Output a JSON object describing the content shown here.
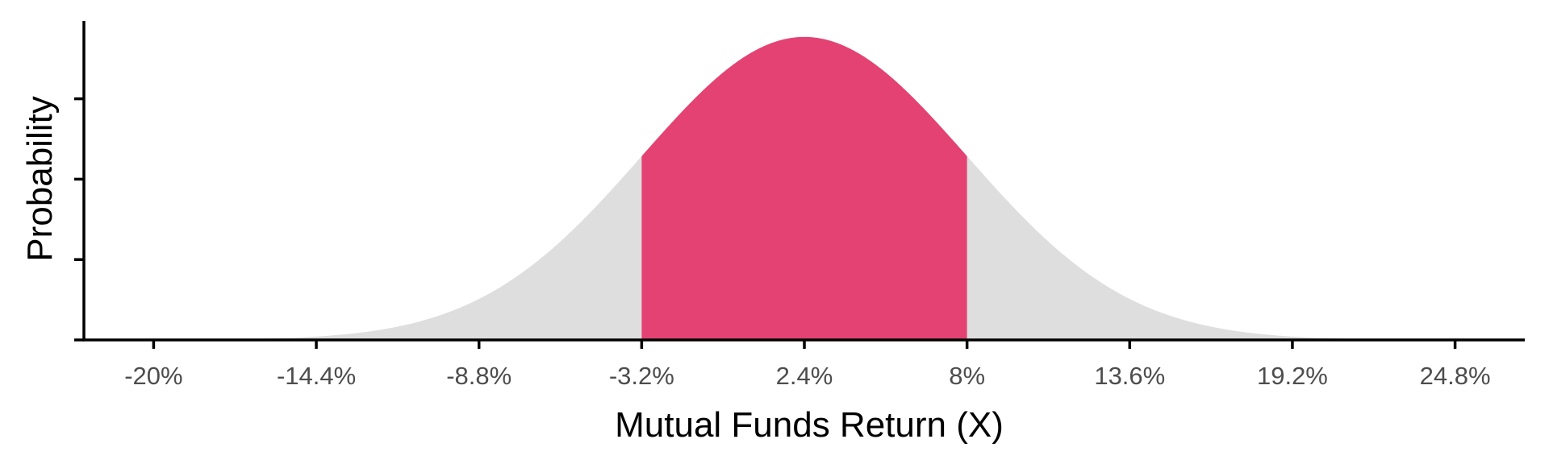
{
  "chart_data": {
    "type": "area",
    "distribution": "normal",
    "mean": 2.4,
    "sd": 5.6,
    "xlim": [
      -22.4,
      27.2
    ],
    "ylim": [
      0,
      0.075
    ],
    "x_ticks": [
      -20,
      -14.4,
      -8.8,
      -3.2,
      2.4,
      8,
      13.6,
      19.2,
      24.8
    ],
    "x_tick_labels": [
      "-20%",
      "-14.4%",
      "-8.8%",
      "-3.2%",
      "2.4%",
      "8%",
      "13.6%",
      "19.2%",
      "24.8%"
    ],
    "y_ticks": [
      0,
      0.0189,
      0.0378,
      0.0567
    ],
    "y_tick_labels_shown": false,
    "shaded_range": [
      -3.2,
      8
    ],
    "xlabel": "Mutual Funds Return (X)",
    "ylabel": "Probability",
    "colors": {
      "highlight": "#e34272",
      "tail": "#dedede",
      "axis": "#000000",
      "tick_text": "#4d4d4d"
    }
  }
}
